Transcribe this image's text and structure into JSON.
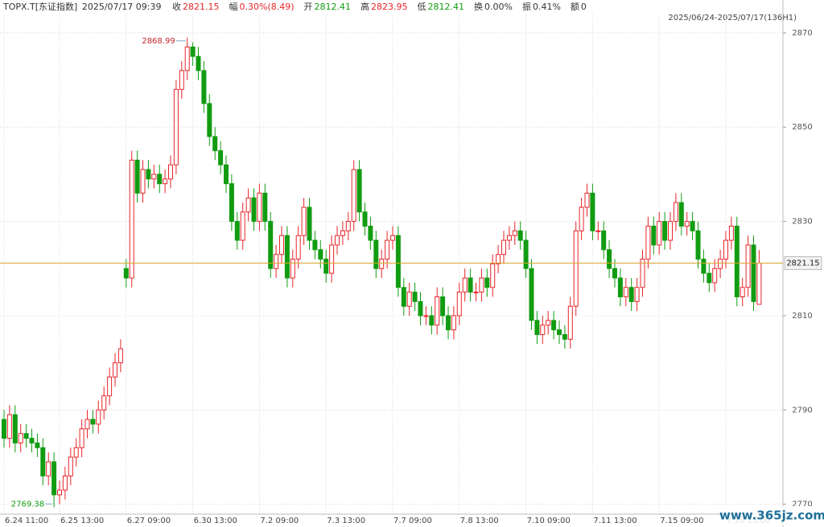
{
  "header": {
    "symbol": "TOPX.T[东证指数]",
    "datetime": "2025/07/17 09:39",
    "items": [
      {
        "label": "收",
        "value": "2821.15",
        "color": "#e8252a"
      },
      {
        "label": "幅",
        "value": "0.30%(8.49)",
        "color": "#e8252a"
      },
      {
        "label": "开",
        "value": "2812.41",
        "color": "#119c11"
      },
      {
        "label": "高",
        "value": "2823.95",
        "color": "#e8252a"
      },
      {
        "label": "低",
        "value": "2812.41",
        "color": "#119c11"
      },
      {
        "label": "换",
        "value": "0.00%",
        "color": "#333333"
      },
      {
        "label": "振",
        "value": "0.41%",
        "color": "#333333"
      },
      {
        "label": "额",
        "value": "0",
        "color": "#333333"
      }
    ]
  },
  "chart_data": {
    "type": "candlestick",
    "range_label": "2025/06/24-2025/07/17(136H1)",
    "up_color": "#e8252a",
    "down_color": "#119c11",
    "last_line_color": "#d9a52a",
    "grid": true,
    "ylim": [
      2767.9,
      2873.9
    ],
    "yticks": [
      2770,
      2790,
      2810,
      2830,
      2850,
      2870
    ],
    "xticks": [
      {
        "value": 0,
        "label": "6.24 11:00"
      },
      {
        "value": 10,
        "label": "6.25 13:00"
      },
      {
        "value": 22,
        "label": "6.27 09:00"
      },
      {
        "value": 34,
        "label": "6.30 13:00"
      },
      {
        "value": 46,
        "label": "7.2 09:00"
      },
      {
        "value": 58,
        "label": "7.3 13:00"
      },
      {
        "value": 70,
        "label": "7.7 09:00"
      },
      {
        "value": 82,
        "label": "7.8 13:00"
      },
      {
        "value": 94,
        "label": "7.10 09:00"
      },
      {
        "value": 106,
        "label": "7.11 13:00"
      },
      {
        "value": 118,
        "label": "7.15 09:00"
      },
      {
        "value": 130,
        "label": "7.16 13:00"
      }
    ],
    "max_label": "2868.99",
    "min_label": "2769.38",
    "last_label": "2821.15",
    "watermark": "www.365jz.com",
    "open": [
      2788,
      2784,
      2789,
      2783,
      2785,
      2784,
      2783,
      2782,
      2776,
      2779,
      2772,
      2773,
      2776,
      2780,
      2782,
      2786,
      2788,
      2787,
      2790,
      2793,
      2797,
      2800,
      2820,
      2818,
      2843,
      2836,
      2841,
      2839,
      2840,
      2838,
      2839,
      2842,
      2858,
      2862,
      2867,
      2865,
      2862,
      2855,
      2848,
      2845,
      2842,
      2838,
      2830,
      2826,
      2832,
      2835,
      2830,
      2836,
      2830,
      2820,
      2823,
      2827,
      2818,
      2822,
      2827,
      2833,
      2826,
      2824,
      2822,
      2819,
      2825,
      2827,
      2828,
      2830,
      2841,
      2832,
      2829,
      2826,
      2820,
      2822,
      2826,
      2827,
      2816,
      2812,
      2815,
      2813,
      2810,
      2810,
      2808,
      2814,
      2810,
      2807,
      2810,
      2815,
      2818,
      2815,
      2815,
      2818,
      2816,
      2821,
      2823,
      2826,
      2827,
      2828,
      2826,
      2820,
      2809,
      2806,
      2808,
      2809,
      2807,
      2806,
      2805,
      2812,
      2828,
      2833,
      2836,
      2828,
      2828,
      2824,
      2820,
      2818,
      2814,
      2816,
      2813,
      2816,
      2822,
      2829,
      2825,
      2830,
      2826,
      2830,
      2834,
      2829,
      2830,
      2828,
      2822,
      2819,
      2817,
      2820,
      2822,
      2826,
      2829,
      2814,
      2816,
      2825,
      2812.41
    ],
    "high": [
      2790,
      2791,
      2791,
      2787,
      2787,
      2786,
      2785,
      2784,
      2781,
      2781,
      2775,
      2778,
      2782,
      2784,
      2788,
      2790,
      2790,
      2792,
      2795,
      2799,
      2802,
      2805,
      2822,
      2845,
      2845,
      2843,
      2843,
      2842,
      2842,
      2841,
      2844,
      2860,
      2864,
      2868.99,
      2868,
      2867,
      2864,
      2857,
      2850,
      2847,
      2844,
      2840,
      2832,
      2834,
      2837,
      2837,
      2838,
      2838,
      2832,
      2825,
      2829,
      2829,
      2824,
      2829,
      2835,
      2835,
      2828,
      2826,
      2824,
      2827,
      2829,
      2830,
      2832,
      2843,
      2843,
      2834,
      2831,
      2828,
      2824,
      2828,
      2829,
      2829,
      2818,
      2817,
      2817,
      2815,
      2812,
      2812,
      2816,
      2816,
      2812,
      2812,
      2817,
      2820,
      2820,
      2817,
      2820,
      2820,
      2823,
      2825,
      2828,
      2829,
      2830,
      2830,
      2828,
      2822,
      2811,
      2810,
      2811,
      2811,
      2809,
      2808,
      2814,
      2830,
      2835,
      2838,
      2838,
      2830,
      2830,
      2826,
      2822,
      2820,
      2818,
      2818,
      2818,
      2824,
      2831,
      2831,
      2832,
      2832,
      2832,
      2836,
      2836,
      2832,
      2832,
      2830,
      2824,
      2821,
      2822,
      2824,
      2828,
      2831,
      2831,
      2818,
      2827,
      2827,
      2823.95
    ],
    "low": [
      2782,
      2782,
      2781,
      2781,
      2782,
      2781,
      2780,
      2774,
      2774,
      2769.38,
      2770,
      2771,
      2774,
      2778,
      2780,
      2784,
      2785,
      2785,
      2788,
      2791,
      2795,
      2798,
      2816,
      2816,
      2834,
      2834,
      2837,
      2837,
      2836,
      2836,
      2837,
      2840,
      2856,
      2860,
      2863,
      2860,
      2853,
      2846,
      2843,
      2840,
      2836,
      2828,
      2824,
      2824,
      2830,
      2828,
      2828,
      2828,
      2818,
      2818,
      2821,
      2816,
      2816,
      2820,
      2825,
      2824,
      2822,
      2820,
      2817,
      2817,
      2823,
      2825,
      2826,
      2828,
      2830,
      2827,
      2824,
      2818,
      2818,
      2820,
      2824,
      2814,
      2810,
      2810,
      2811,
      2808,
      2808,
      2806,
      2806,
      2808,
      2805,
      2805,
      2808,
      2813,
      2813,
      2813,
      2813,
      2814,
      2814,
      2819,
      2821,
      2824,
      2825,
      2824,
      2818,
      2807,
      2804,
      2804,
      2806,
      2805,
      2804,
      2803,
      2803,
      2810,
      2826,
      2831,
      2826,
      2826,
      2822,
      2818,
      2816,
      2812,
      2812,
      2811,
      2811,
      2814,
      2820,
      2823,
      2823,
      2824,
      2824,
      2828,
      2827,
      2827,
      2826,
      2820,
      2817,
      2815,
      2815,
      2818,
      2820,
      2824,
      2812,
      2812,
      2814,
      2811,
      2812.41
    ],
    "close": [
      2784,
      2789,
      2783,
      2785,
      2784,
      2783,
      2782,
      2776,
      2779,
      2772,
      2773,
      2776,
      2780,
      2782,
      2786,
      2788,
      2787,
      2790,
      2793,
      2797,
      2800,
      2803,
      2818,
      2843,
      2836,
      2841,
      2839,
      2840,
      2838,
      2839,
      2842,
      2858,
      2862,
      2867,
      2865,
      2862,
      2855,
      2848,
      2845,
      2842,
      2838,
      2830,
      2826,
      2832,
      2835,
      2830,
      2836,
      2830,
      2820,
      2823,
      2827,
      2818,
      2822,
      2827,
      2833,
      2826,
      2824,
      2822,
      2819,
      2825,
      2827,
      2828,
      2830,
      2841,
      2832,
      2829,
      2826,
      2820,
      2822,
      2826,
      2827,
      2816,
      2812,
      2815,
      2813,
      2810,
      2810,
      2808,
      2814,
      2810,
      2807,
      2810,
      2815,
      2818,
      2815,
      2815,
      2818,
      2816,
      2821,
      2823,
      2826,
      2827,
      2828,
      2826,
      2820,
      2809,
      2806,
      2808,
      2809,
      2807,
      2806,
      2805,
      2812,
      2828,
      2833,
      2836,
      2828,
      2828,
      2824,
      2820,
      2818,
      2814,
      2816,
      2813,
      2816,
      2822,
      2829,
      2825,
      2830,
      2826,
      2830,
      2834,
      2829,
      2830,
      2828,
      2822,
      2819,
      2817,
      2820,
      2822,
      2826,
      2829,
      2814,
      2816,
      2825,
      2813,
      2821.15
    ]
  }
}
